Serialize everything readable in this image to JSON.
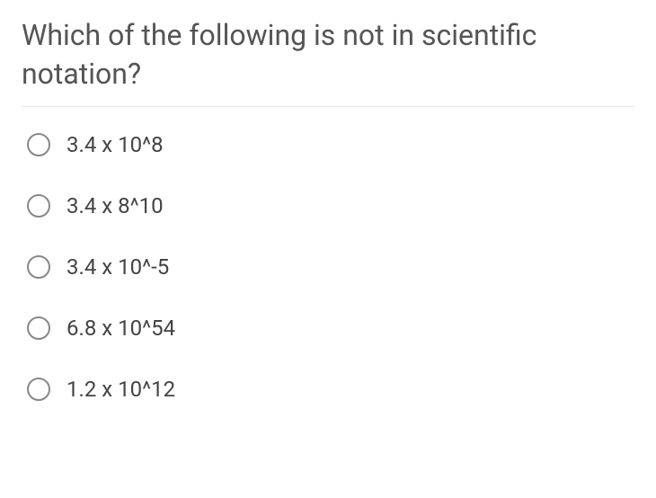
{
  "question": {
    "title": "Which of the following is not in scientific notation?",
    "title_color": "#555555",
    "title_fontsize": 32,
    "divider_color": "#e5e5e5"
  },
  "options": [
    {
      "label": "3.4 x 10^8"
    },
    {
      "label": "3.4 x 8^10"
    },
    {
      "label": "3.4 x 10^-5"
    },
    {
      "label": "6.8 x 10^54"
    },
    {
      "label": "1.2 x 10^12"
    }
  ],
  "styling": {
    "option_color": "#444444",
    "option_fontsize": 24,
    "radio_border_color": "#888888",
    "radio_size": 26,
    "background_color": "#ffffff"
  }
}
